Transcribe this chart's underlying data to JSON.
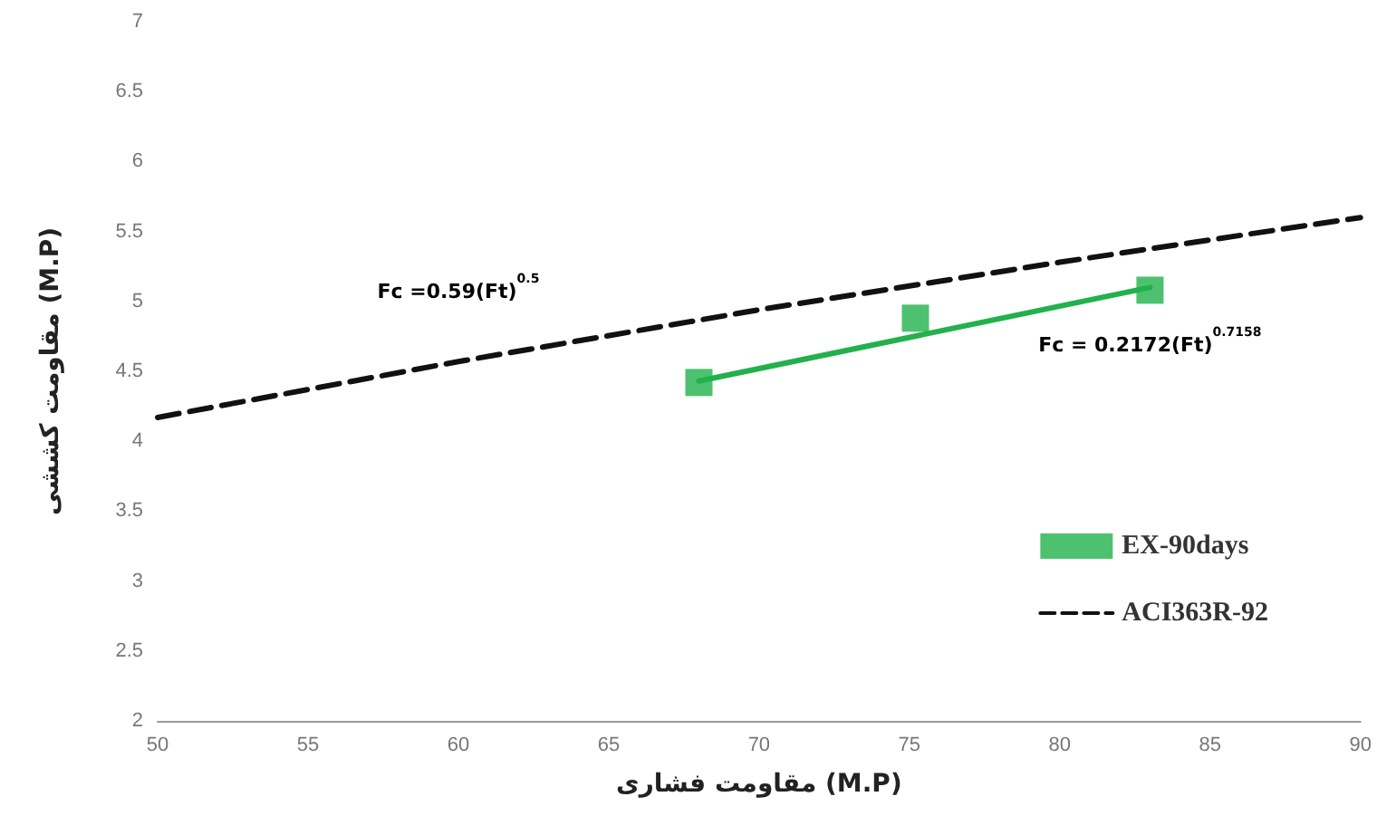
{
  "chart_data": {
    "type": "scatter",
    "xlabel": "مقاومت فشاری (M.P)",
    "ylabel": "مقاومت کششی (M.P)",
    "xlim": [
      50,
      90
    ],
    "xticks": [
      50,
      55,
      60,
      65,
      70,
      75,
      80,
      85,
      90
    ],
    "ylim": [
      2,
      7
    ],
    "yticks": [
      2,
      2.5,
      3,
      3.5,
      4,
      4.5,
      5,
      5.5,
      6,
      6.5,
      7
    ],
    "series": [
      {
        "name": "EX-90days",
        "color": "#22b14c",
        "marker": "square",
        "x": [
          68,
          75.2,
          83
        ],
        "values": [
          4.42,
          4.88,
          5.08
        ]
      },
      {
        "type": "line",
        "color": "#22b14c",
        "line_style": "solid",
        "marker": "none",
        "x": [
          68,
          83
        ],
        "values": [
          4.43,
          5.1
        ]
      },
      {
        "name": "ACI363R-92",
        "type": "line",
        "color": "#111111",
        "line_style": "dashed",
        "marker": "none",
        "x": [
          50,
          60,
          70,
          80,
          90
        ],
        "values": [
          4.17,
          4.57,
          4.94,
          5.28,
          5.6
        ]
      }
    ],
    "annotations": [
      "Fc =0.59(Ft)$^{0.5}$",
      "Fc = 0.2172(Ft)$^{0.7158}$"
    ],
    "legend": "bottom right",
    "grid": false
  }
}
